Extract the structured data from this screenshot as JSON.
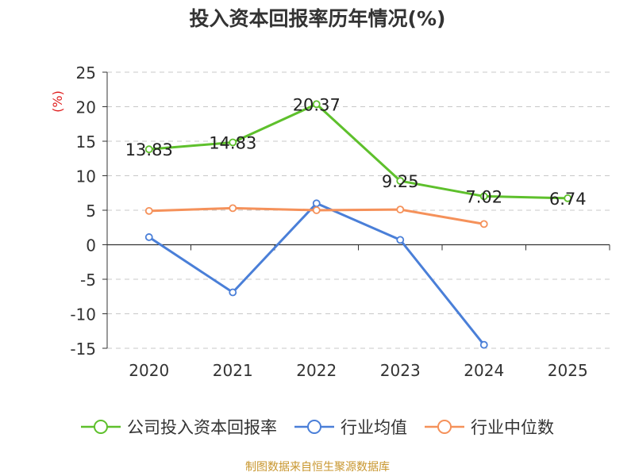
{
  "chart_data": {
    "type": "line",
    "title": "投入资本回报率历年情况(%)",
    "ylabel": "(%)",
    "xlabel": "",
    "categories": [
      "2020",
      "2021",
      "2022",
      "2023",
      "2024",
      "2025"
    ],
    "ylim": [
      -15,
      25
    ],
    "yticks": [
      "25",
      "20",
      "15",
      "10",
      "5",
      "0",
      "-5",
      "-10",
      "-15"
    ],
    "grid": true,
    "legend_position": "bottom",
    "series": [
      {
        "name": "公司投入资本回报率",
        "color": "#5ec02c",
        "values": [
          13.83,
          14.83,
          20.37,
          9.25,
          7.02,
          6.74
        ],
        "labels": [
          "13.83",
          "14.83",
          "20.37",
          "9.25",
          "7.02",
          "6.74"
        ]
      },
      {
        "name": "行业均值",
        "color": "#4a7fd8",
        "values": [
          1.1,
          -6.9,
          6.0,
          0.7,
          -14.5,
          null
        ]
      },
      {
        "name": "行业中位数",
        "color": "#f5915a",
        "values": [
          4.9,
          5.3,
          5.0,
          5.1,
          3.0,
          null
        ]
      }
    ]
  },
  "footer": {
    "source": "制图数据来自恒生聚源数据库"
  }
}
